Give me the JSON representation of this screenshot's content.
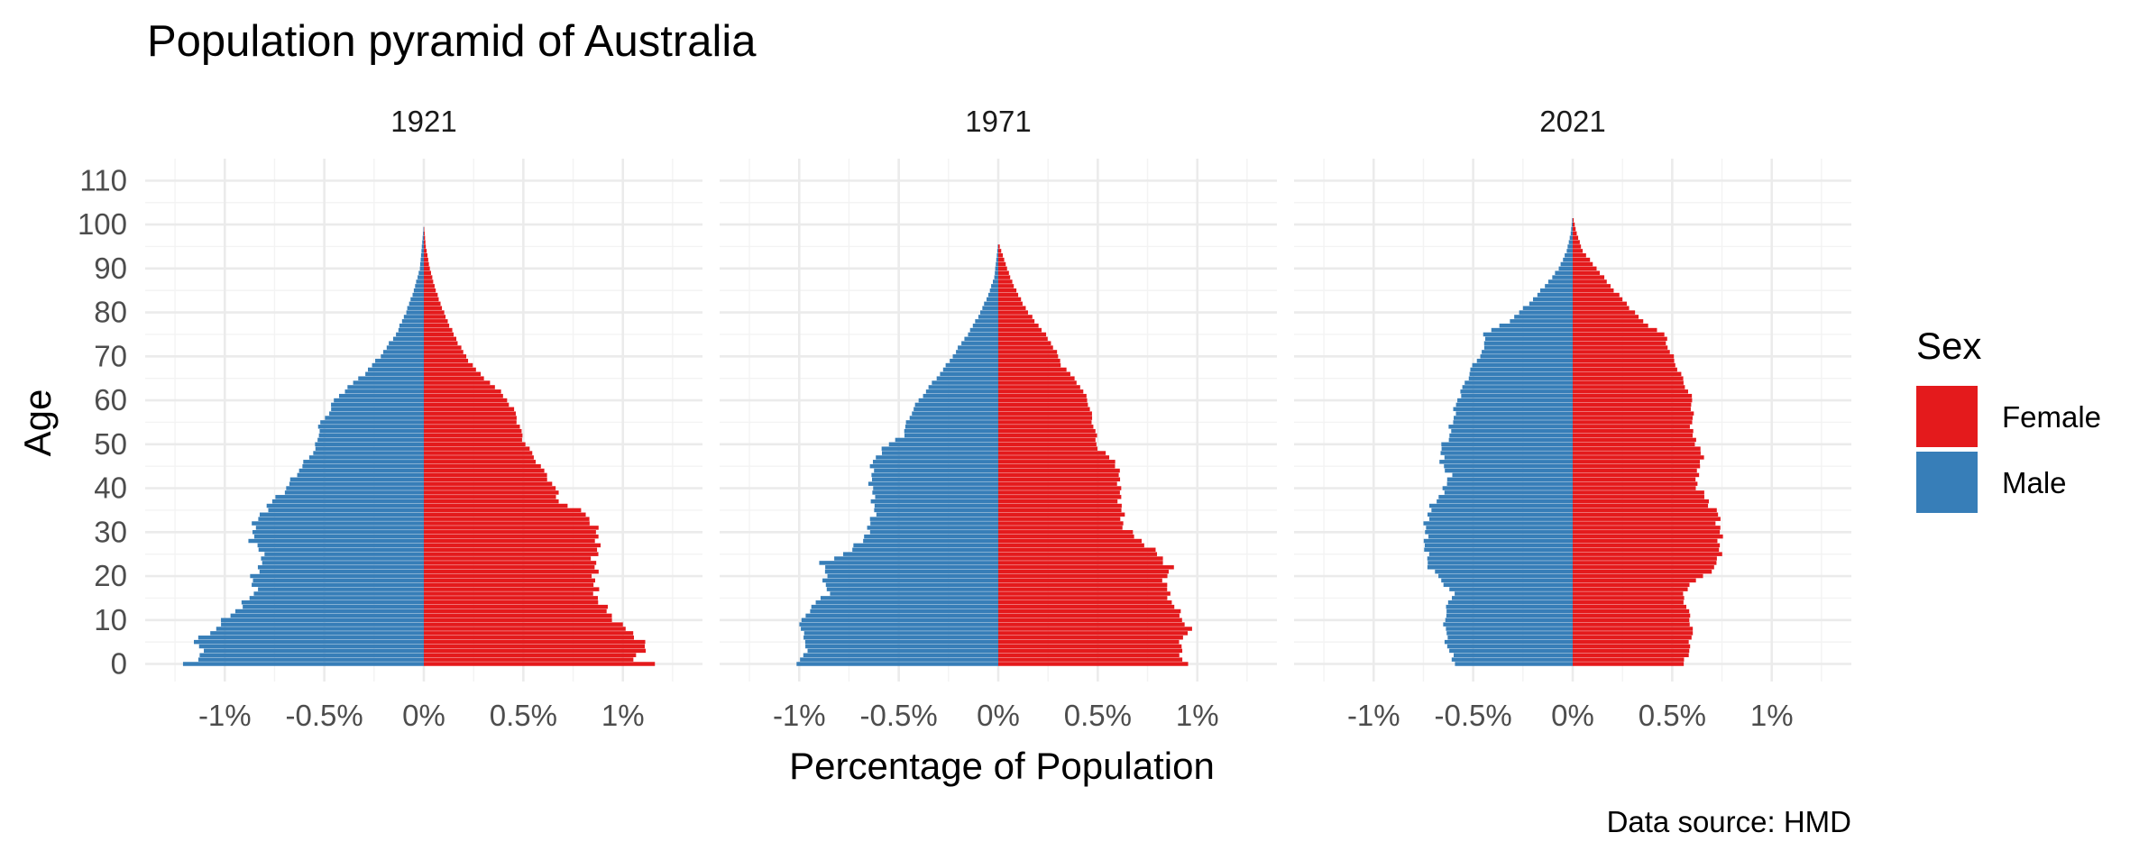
{
  "chart_data": {
    "type": "bar",
    "title": "Population pyramid of Australia",
    "xlabel": "Percentage of Population",
    "ylabel": "Age",
    "caption": "Data source: HMD",
    "legend": {
      "title": "Sex",
      "position": "right",
      "entries": [
        {
          "name": "Female",
          "color": "#e41a1c"
        },
        {
          "name": "Male",
          "color": "#377eb8"
        }
      ]
    },
    "x_ticks": [
      -1,
      -0.5,
      0,
      0.5,
      1
    ],
    "x_tick_labels": [
      "-1%",
      "-0.5%",
      "0%",
      "0.5%",
      "1%"
    ],
    "xlim": [
      -1.4,
      1.4
    ],
    "y_ticks": [
      0,
      10,
      20,
      30,
      40,
      50,
      60,
      70,
      80,
      90,
      100,
      110
    ],
    "y_tick_labels": [
      "0",
      "10",
      "20",
      "30",
      "40",
      "50",
      "60",
      "70",
      "80",
      "90",
      "100",
      "110"
    ],
    "ylim": [
      -4,
      115
    ],
    "grid": true,
    "ages": "0-110 (single years)",
    "panels": [
      {
        "label": "1921",
        "male_pct_knots": [
          [
            0,
            -1.21
          ],
          [
            1,
            -1.12
          ],
          [
            3,
            -1.12
          ],
          [
            5,
            -1.15
          ],
          [
            8,
            -1.05
          ],
          [
            12,
            -0.95
          ],
          [
            16,
            -0.85
          ],
          [
            20,
            -0.86
          ],
          [
            24,
            -0.8
          ],
          [
            28,
            -0.86
          ],
          [
            31,
            -0.86
          ],
          [
            34,
            -0.82
          ],
          [
            37,
            -0.76
          ],
          [
            40,
            -0.69
          ],
          [
            44,
            -0.63
          ],
          [
            48,
            -0.56
          ],
          [
            51,
            -0.53
          ],
          [
            54,
            -0.53
          ],
          [
            57,
            -0.48
          ],
          [
            60,
            -0.45
          ],
          [
            63,
            -0.38
          ],
          [
            66,
            -0.3
          ],
          [
            70,
            -0.22
          ],
          [
            75,
            -0.14
          ],
          [
            80,
            -0.09
          ],
          [
            85,
            -0.05
          ],
          [
            90,
            -0.02
          ],
          [
            95,
            -0.01
          ],
          [
            100,
            0
          ]
        ],
        "female_pct_knots": [
          [
            0,
            1.16
          ],
          [
            1,
            1.06
          ],
          [
            3,
            1.1
          ],
          [
            5,
            1.11
          ],
          [
            8,
            1.01
          ],
          [
            12,
            0.92
          ],
          [
            16,
            0.86
          ],
          [
            20,
            0.86
          ],
          [
            24,
            0.86
          ],
          [
            28,
            0.88
          ],
          [
            31,
            0.86
          ],
          [
            34,
            0.82
          ],
          [
            37,
            0.68
          ],
          [
            40,
            0.66
          ],
          [
            44,
            0.6
          ],
          [
            48,
            0.54
          ],
          [
            51,
            0.5
          ],
          [
            54,
            0.48
          ],
          [
            57,
            0.46
          ],
          [
            60,
            0.42
          ],
          [
            63,
            0.36
          ],
          [
            66,
            0.28
          ],
          [
            70,
            0.21
          ],
          [
            75,
            0.15
          ],
          [
            80,
            0.1
          ],
          [
            85,
            0.06
          ],
          [
            90,
            0.03
          ],
          [
            95,
            0.01
          ],
          [
            100,
            0
          ]
        ]
      },
      {
        "label": "1971",
        "male_pct_knots": [
          [
            0,
            -1.0
          ],
          [
            2,
            -0.98
          ],
          [
            5,
            -0.96
          ],
          [
            8,
            -1.0
          ],
          [
            12,
            -0.96
          ],
          [
            16,
            -0.86
          ],
          [
            20,
            -0.87
          ],
          [
            23,
            -0.88
          ],
          [
            25,
            -0.78
          ],
          [
            28,
            -0.68
          ],
          [
            31,
            -0.65
          ],
          [
            35,
            -0.62
          ],
          [
            38,
            -0.63
          ],
          [
            42,
            -0.64
          ],
          [
            46,
            -0.63
          ],
          [
            49,
            -0.58
          ],
          [
            52,
            -0.48
          ],
          [
            56,
            -0.45
          ],
          [
            60,
            -0.4
          ],
          [
            64,
            -0.33
          ],
          [
            68,
            -0.26
          ],
          [
            72,
            -0.2
          ],
          [
            76,
            -0.14
          ],
          [
            80,
            -0.09
          ],
          [
            84,
            -0.05
          ],
          [
            88,
            -0.02
          ],
          [
            92,
            -0.01
          ],
          [
            96,
            0
          ]
        ],
        "female_pct_knots": [
          [
            0,
            0.96
          ],
          [
            2,
            0.91
          ],
          [
            5,
            0.92
          ],
          [
            8,
            0.96
          ],
          [
            12,
            0.9
          ],
          [
            16,
            0.85
          ],
          [
            20,
            0.84
          ],
          [
            22,
            0.87
          ],
          [
            25,
            0.8
          ],
          [
            28,
            0.72
          ],
          [
            31,
            0.63
          ],
          [
            35,
            0.62
          ],
          [
            38,
            0.61
          ],
          [
            42,
            0.61
          ],
          [
            46,
            0.59
          ],
          [
            49,
            0.5
          ],
          [
            52,
            0.49
          ],
          [
            56,
            0.47
          ],
          [
            60,
            0.45
          ],
          [
            64,
            0.4
          ],
          [
            68,
            0.32
          ],
          [
            72,
            0.28
          ],
          [
            76,
            0.22
          ],
          [
            80,
            0.15
          ],
          [
            84,
            0.1
          ],
          [
            88,
            0.06
          ],
          [
            92,
            0.03
          ],
          [
            96,
            0
          ]
        ]
      },
      {
        "label": "2021",
        "male_pct_knots": [
          [
            0,
            -0.59
          ],
          [
            4,
            -0.63
          ],
          [
            8,
            -0.64
          ],
          [
            12,
            -0.64
          ],
          [
            16,
            -0.6
          ],
          [
            19,
            -0.66
          ],
          [
            22,
            -0.72
          ],
          [
            26,
            -0.74
          ],
          [
            30,
            -0.74
          ],
          [
            34,
            -0.73
          ],
          [
            37,
            -0.69
          ],
          [
            40,
            -0.64
          ],
          [
            43,
            -0.62
          ],
          [
            46,
            -0.66
          ],
          [
            49,
            -0.66
          ],
          [
            52,
            -0.62
          ],
          [
            56,
            -0.6
          ],
          [
            60,
            -0.58
          ],
          [
            64,
            -0.54
          ],
          [
            68,
            -0.5
          ],
          [
            72,
            -0.44
          ],
          [
            75,
            -0.45
          ],
          [
            78,
            -0.32
          ],
          [
            82,
            -0.22
          ],
          [
            86,
            -0.14
          ],
          [
            90,
            -0.07
          ],
          [
            94,
            -0.03
          ],
          [
            98,
            -0.01
          ],
          [
            102,
            0
          ]
        ],
        "female_pct_knots": [
          [
            0,
            0.56
          ],
          [
            4,
            0.59
          ],
          [
            8,
            0.6
          ],
          [
            12,
            0.58
          ],
          [
            16,
            0.55
          ],
          [
            19,
            0.62
          ],
          [
            22,
            0.72
          ],
          [
            26,
            0.74
          ],
          [
            30,
            0.74
          ],
          [
            34,
            0.73
          ],
          [
            37,
            0.68
          ],
          [
            40,
            0.63
          ],
          [
            43,
            0.62
          ],
          [
            46,
            0.65
          ],
          [
            49,
            0.64
          ],
          [
            52,
            0.6
          ],
          [
            56,
            0.6
          ],
          [
            60,
            0.6
          ],
          [
            64,
            0.56
          ],
          [
            68,
            0.52
          ],
          [
            72,
            0.48
          ],
          [
            75,
            0.46
          ],
          [
            78,
            0.35
          ],
          [
            82,
            0.27
          ],
          [
            86,
            0.19
          ],
          [
            90,
            0.12
          ],
          [
            94,
            0.05
          ],
          [
            98,
            0.02
          ],
          [
            102,
            0
          ]
        ]
      }
    ]
  }
}
